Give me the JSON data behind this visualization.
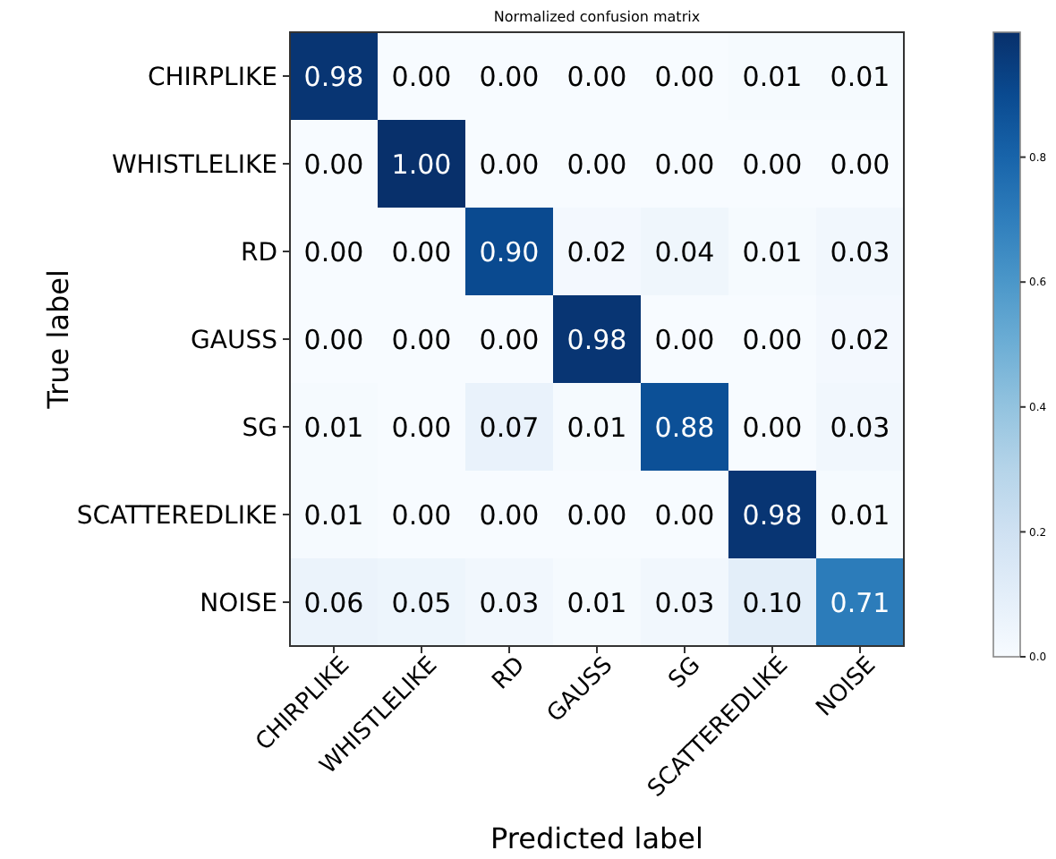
{
  "chart_data": {
    "type": "heatmap",
    "title": "Normalized confusion matrix",
    "xlabel": "Predicted label",
    "ylabel": "True label",
    "categories": [
      "CHIRPLIKE",
      "WHISTLELIKE",
      "RD",
      "GAUSS",
      "SG",
      "SCATTEREDLIKE",
      "NOISE"
    ],
    "y_categories": [
      "CHIRPLIKE",
      "WHISTLELIKE",
      "RD",
      "GAUSS",
      "SG",
      "SCATTEREDLIKE",
      "NOISE"
    ],
    "cells": [
      [
        0.98,
        0.0,
        0.0,
        0.0,
        0.0,
        0.01,
        0.01
      ],
      [
        0.0,
        1.0,
        0.0,
        0.0,
        0.0,
        0.0,
        0.0
      ],
      [
        0.0,
        0.0,
        0.9,
        0.02,
        0.04,
        0.01,
        0.03
      ],
      [
        0.0,
        0.0,
        0.0,
        0.98,
        0.0,
        0.0,
        0.02
      ],
      [
        0.01,
        0.0,
        0.07,
        0.01,
        0.88,
        0.0,
        0.03
      ],
      [
        0.01,
        0.0,
        0.0,
        0.0,
        0.0,
        0.98,
        0.01
      ],
      [
        0.06,
        0.05,
        0.03,
        0.01,
        0.03,
        0.1,
        0.71
      ]
    ],
    "cell_labels": [
      [
        "0.98",
        "0.00",
        "0.00",
        "0.00",
        "0.00",
        "0.01",
        "0.01"
      ],
      [
        "0.00",
        "1.00",
        "0.00",
        "0.00",
        "0.00",
        "0.00",
        "0.00"
      ],
      [
        "0.00",
        "0.00",
        "0.90",
        "0.02",
        "0.04",
        "0.01",
        "0.03"
      ],
      [
        "0.00",
        "0.00",
        "0.00",
        "0.98",
        "0.00",
        "0.00",
        "0.02"
      ],
      [
        "0.01",
        "0.00",
        "0.07",
        "0.01",
        "0.88",
        "0.00",
        "0.03"
      ],
      [
        "0.01",
        "0.00",
        "0.00",
        "0.00",
        "0.00",
        "0.98",
        "0.01"
      ],
      [
        "0.06",
        "0.05",
        "0.03",
        "0.01",
        "0.03",
        "0.10",
        "0.71"
      ]
    ],
    "clim": [
      0,
      1
    ],
    "cticks": [
      {
        "value": 0,
        "label": "0.0"
      },
      {
        "value": 0.2,
        "label": "0.2"
      },
      {
        "value": 0.4,
        "label": "0.4"
      },
      {
        "value": 0.6,
        "label": "0.6"
      },
      {
        "value": 0.8,
        "label": "0.8"
      }
    ],
    "data_labels": true
  }
}
